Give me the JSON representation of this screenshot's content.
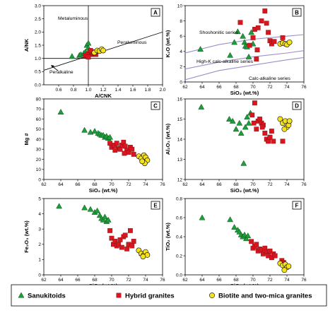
{
  "colors": {
    "sanukitoids": "#1e9e3a",
    "hybrid": "#d9161f",
    "biotite": "#f6e21b",
    "series_curve": "#9a8fc8"
  },
  "legend": [
    {
      "label": "Sanukitoids",
      "marker": "triangle",
      "color_key": "sanukitoids"
    },
    {
      "label": "Hybrid granites",
      "marker": "square",
      "color_key": "hybrid"
    },
    {
      "label": "Biotite and two-mica granites",
      "marker": "circle",
      "color_key": "biotite"
    }
  ],
  "chart_data": [
    {
      "panel": "A",
      "type": "scatter",
      "xlabel": "A/CNK",
      "ylabel": "A/NK",
      "xlim": [
        0.4,
        2.0
      ],
      "ylim": [
        0.0,
        3.0
      ],
      "xticks": [
        "0.6",
        "0.8",
        "1.0",
        "1.2",
        "1.4",
        "1.6",
        "1.8",
        "2.0"
      ],
      "yticks": [
        "0.0",
        "0.5",
        "1.0",
        "1.5",
        "2.0",
        "2.5",
        "3.0"
      ],
      "annotations": [
        "Metaluminous",
        "Peraluminous",
        "Peralkaline"
      ],
      "reference_lines": [
        {
          "x": [
            1.0,
            1.0
          ],
          "y": [
            0.0,
            3.0
          ]
        },
        {
          "x": [
            0.4,
            2.0
          ],
          "y": [
            1.0,
            1.0
          ]
        },
        {
          "x": [
            0.4,
            2.0
          ],
          "y": [
            0.55,
            2.0
          ]
        }
      ],
      "series": [
        {
          "group": "sanukitoids",
          "x": [
            0.78,
            0.88,
            0.9,
            0.94,
            0.96,
            0.98,
            1.0,
            1.0,
            0.98,
            1.0
          ],
          "y": [
            1.08,
            1.12,
            1.15,
            1.2,
            1.25,
            1.5,
            1.4,
            1.2,
            1.12,
            1.58
          ]
        },
        {
          "group": "hybrid",
          "x": [
            0.96,
            0.98,
            1.0,
            1.02,
            1.04,
            1.05,
            1.07,
            1.09,
            1.1,
            1.0,
            1.03
          ],
          "y": [
            1.1,
            1.12,
            1.18,
            1.22,
            1.15,
            1.25,
            1.18,
            1.2,
            1.15,
            1.05,
            1.3
          ]
        },
        {
          "group": "biotite",
          "x": [
            1.08,
            1.12,
            1.15,
            1.18,
            1.2
          ],
          "y": [
            1.22,
            1.3,
            1.28,
            1.35,
            1.3
          ]
        }
      ]
    },
    {
      "panel": "B",
      "type": "scatter",
      "xlabel": "SiO₂ (wt.%)",
      "ylabel": "K₂O (wt.%)",
      "xlim": [
        62,
        76
      ],
      "ylim": [
        0,
        10
      ],
      "xticks": [
        "62",
        "64",
        "66",
        "68",
        "70",
        "72",
        "74",
        "76"
      ],
      "yticks": [
        "0",
        "2",
        "4",
        "6",
        "8",
        "10"
      ],
      "annotations": [
        "Shoshonitic series",
        "High-K calc-alkaline series",
        "Calc-alkaline series"
      ],
      "reference_curves": [
        {
          "x": [
            62,
            66,
            70,
            74,
            76
          ],
          "y": [
            3.8,
            4.9,
            5.6,
            6.0,
            6.2
          ]
        },
        {
          "x": [
            62,
            66,
            70,
            74,
            76
          ],
          "y": [
            1.7,
            2.6,
            3.3,
            3.8,
            4.1
          ]
        },
        {
          "x": [
            62,
            66,
            70,
            74,
            76
          ],
          "y": [
            0.3,
            1.5,
            2.2,
            2.9,
            3.2
          ]
        }
      ],
      "series": [
        {
          "group": "sanukitoids",
          "x": [
            63.8,
            67.3,
            67.8,
            68.2,
            68.8,
            69.0,
            69.1,
            69.3,
            69.5,
            69.8,
            70.0
          ],
          "y": [
            4.3,
            3.5,
            5.2,
            6.6,
            6.0,
            5.2,
            4.7,
            4.6,
            3.3,
            6.5,
            5.0
          ]
        },
        {
          "group": "hybrid",
          "x": [
            68.5,
            69.6,
            70.0,
            70.2,
            70.4,
            70.5,
            71.0,
            71.4,
            71.6,
            71.8,
            72.0,
            72.2,
            72.5,
            73.5,
            70.6
          ],
          "y": [
            7.8,
            4.8,
            5.8,
            6.9,
            3.0,
            4.2,
            8.0,
            9.3,
            7.7,
            6.5,
            5.4,
            5.0,
            5.3,
            5.8,
            7.1
          ]
        },
        {
          "group": "biotite",
          "x": [
            73.2,
            73.5,
            73.8,
            74.0,
            74.3
          ],
          "y": [
            5.0,
            5.1,
            5.0,
            4.9,
            5.2
          ]
        }
      ]
    },
    {
      "panel": "C",
      "type": "scatter",
      "xlabel": "SiO₂ (wt.%)",
      "ylabel": "Mg #",
      "xlim": [
        62,
        76
      ],
      "ylim": [
        0,
        80
      ],
      "xticks": [
        "62",
        "64",
        "66",
        "68",
        "70",
        "72",
        "74",
        "76"
      ],
      "yticks": [
        "0",
        "10",
        "20",
        "30",
        "40",
        "50",
        "60",
        "70",
        "80"
      ],
      "series": [
        {
          "group": "sanukitoids",
          "x": [
            64.0,
            66.8,
            67.5,
            68.0,
            68.4,
            68.6,
            68.8,
            69.0,
            69.2,
            69.4,
            69.6,
            69.8
          ],
          "y": [
            67,
            49,
            47,
            48,
            46,
            45,
            44,
            44,
            42,
            43,
            41,
            42
          ]
        },
        {
          "group": "hybrid",
          "x": [
            69.8,
            70.0,
            70.3,
            70.6,
            70.8,
            71.0,
            71.2,
            71.4,
            71.6,
            71.8,
            72.0,
            72.2,
            72.4,
            72.6,
            70.4,
            71.5
          ],
          "y": [
            36,
            32,
            34,
            36,
            31,
            30,
            34,
            37,
            33,
            29,
            27,
            32,
            30,
            25,
            29,
            26
          ]
        },
        {
          "group": "biotite",
          "x": [
            73.2,
            73.5,
            73.8,
            74.0,
            74.2,
            73.9,
            73.6
          ],
          "y": [
            23,
            21,
            24,
            22,
            19,
            16,
            18
          ]
        }
      ]
    },
    {
      "panel": "D",
      "type": "scatter",
      "xlabel": "SiO₂ (wt.%)",
      "ylabel": "Al₂O₃ (wt.%)",
      "xlim": [
        62,
        76
      ],
      "ylim": [
        12,
        16
      ],
      "xticks": [
        "62",
        "64",
        "66",
        "68",
        "70",
        "72",
        "74",
        "76"
      ],
      "yticks": [
        "12",
        "13",
        "14",
        "15",
        "16"
      ],
      "series": [
        {
          "group": "sanukitoids",
          "x": [
            63.9,
            67.2,
            67.6,
            68.0,
            68.4,
            68.6,
            68.9,
            69.1,
            69.3,
            69.5,
            69.7
          ],
          "y": [
            15.6,
            15.0,
            14.9,
            14.5,
            14.8,
            14.3,
            12.8,
            14.6,
            15.1,
            14.8,
            15.3
          ]
        },
        {
          "group": "hybrid",
          "x": [
            69.9,
            70.2,
            70.4,
            70.6,
            70.8,
            71.0,
            71.2,
            71.4,
            71.6,
            71.8,
            72.0,
            72.2,
            72.4,
            73.5,
            70.1,
            71.1
          ],
          "y": [
            15.2,
            15.8,
            14.5,
            14.9,
            15.0,
            14.8,
            14.7,
            14.3,
            14.0,
            13.9,
            14.1,
            14.4,
            13.9,
            13.9,
            14.8,
            14.6
          ]
        },
        {
          "group": "biotite",
          "x": [
            73.2,
            73.5,
            73.8,
            74.0,
            74.2,
            73.7,
            74.3
          ],
          "y": [
            15.0,
            14.8,
            14.9,
            14.6,
            14.7,
            14.5,
            14.9
          ]
        }
      ]
    },
    {
      "panel": "E",
      "type": "scatter",
      "xlabel": "SiO₂ (wt.%)",
      "ylabel": "Fe₂O₃ (wt.%)",
      "xlim": [
        62,
        76
      ],
      "ylim": [
        0,
        5
      ],
      "xticks": [
        "62",
        "64",
        "66",
        "68",
        "70",
        "72",
        "74",
        "76"
      ],
      "yticks": [
        "0",
        "1",
        "2",
        "3",
        "4",
        "5"
      ],
      "series": [
        {
          "group": "sanukitoids",
          "x": [
            63.8,
            66.8,
            67.5,
            68.0,
            68.3,
            68.6,
            68.8,
            69.0,
            69.2,
            69.4,
            69.6
          ],
          "y": [
            4.5,
            4.4,
            4.3,
            4.1,
            4.2,
            3.9,
            3.7,
            3.6,
            3.8,
            3.5,
            3.6
          ]
        },
        {
          "group": "hybrid",
          "x": [
            69.8,
            70.0,
            70.2,
            70.4,
            70.6,
            70.8,
            71.0,
            71.2,
            71.4,
            71.6,
            71.8,
            72.0,
            72.2,
            72.4,
            72.6,
            73.5
          ],
          "y": [
            2.9,
            2.4,
            2.0,
            2.2,
            1.9,
            2.0,
            2.3,
            1.8,
            2.5,
            2.6,
            1.7,
            2.0,
            2.9,
            1.9,
            2.2,
            1.4
          ]
        },
        {
          "group": "biotite",
          "x": [
            73.2,
            73.5,
            73.8,
            74.0,
            74.2,
            73.7
          ],
          "y": [
            1.6,
            1.4,
            1.3,
            1.5,
            1.3,
            1.2
          ]
        }
      ]
    },
    {
      "panel": "F",
      "type": "scatter",
      "xlabel": "SiO₂ (wt.%)",
      "ylabel": "TiO₂ (wt.%)",
      "xlim": [
        62,
        76
      ],
      "ylim": [
        0.0,
        0.8
      ],
      "xticks": [
        "62",
        "64",
        "66",
        "68",
        "70",
        "72",
        "74",
        "76"
      ],
      "yticks": [
        "0.0",
        "0.2",
        "0.4",
        "0.6",
        "0.8"
      ],
      "series": [
        {
          "group": "sanukitoids",
          "x": [
            64.0,
            67.3,
            67.8,
            68.2,
            68.4,
            68.6,
            68.8,
            69.0,
            69.2,
            69.4
          ],
          "y": [
            0.6,
            0.58,
            0.5,
            0.47,
            0.45,
            0.42,
            0.4,
            0.42,
            0.38,
            0.41
          ]
        },
        {
          "group": "hybrid",
          "x": [
            69.8,
            70.0,
            70.2,
            70.4,
            70.6,
            70.8,
            71.0,
            71.2,
            71.4,
            71.6,
            71.8,
            72.0,
            72.2,
            72.4,
            72.6,
            73.4,
            73.6
          ],
          "y": [
            0.35,
            0.28,
            0.3,
            0.32,
            0.25,
            0.27,
            0.26,
            0.22,
            0.28,
            0.24,
            0.2,
            0.25,
            0.18,
            0.22,
            0.2,
            0.15,
            0.13
          ]
        },
        {
          "group": "biotite",
          "x": [
            73.2,
            73.5,
            73.8,
            74.0,
            74.2,
            73.7
          ],
          "y": [
            0.12,
            0.1,
            0.11,
            0.08,
            0.09,
            0.05
          ]
        }
      ]
    }
  ]
}
